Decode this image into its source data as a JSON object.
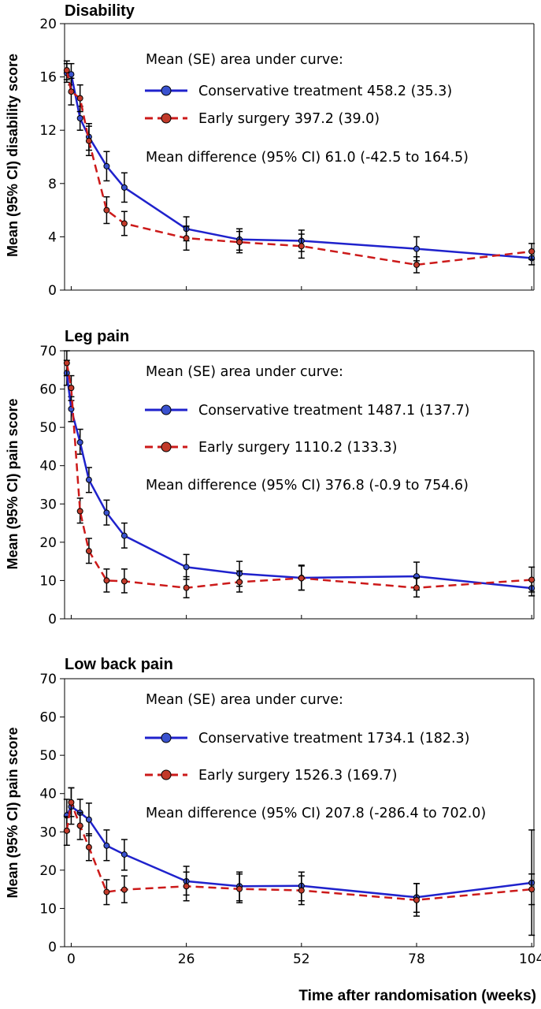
{
  "colors": {
    "conservative": "#1f22cc",
    "surgery": "#cc1a1a",
    "marker_fill_cons": "#3a52cf",
    "marker_fill_surg": "#c23a2a"
  },
  "chart_data": [
    {
      "type": "line",
      "title": "Disability",
      "ylabel": "Mean (95% CI) disability score",
      "xlabel": "",
      "xlim": [
        -1.5,
        104.5
      ],
      "ylim": [
        0,
        20
      ],
      "yticks": [
        0,
        4,
        8,
        12,
        16,
        20
      ],
      "xticks": [],
      "annotation_header": "Mean (SE) area under curve:",
      "annotation_footer": "Mean difference (95% CI) 61.0 (-42.5 to 164.5)",
      "series": [
        {
          "name": "Conservative treatment 458.2 (35.3)",
          "x": [
            -1,
            0,
            2,
            4,
            8,
            12,
            26,
            38,
            52,
            78,
            104
          ],
          "y": [
            16.3,
            16.2,
            12.9,
            11.5,
            9.3,
            7.7,
            4.6,
            3.8,
            3.7,
            3.1,
            2.4
          ],
          "lower": [
            15.6,
            15.4,
            12.0,
            10.5,
            8.2,
            6.6,
            3.7,
            3.0,
            2.9,
            2.2,
            1.9
          ],
          "upper": [
            17.0,
            17.0,
            13.8,
            12.5,
            10.4,
            8.8,
            5.5,
            4.6,
            4.5,
            4.0,
            2.9
          ]
        },
        {
          "name": "Early surgery 397.2 (39.0)",
          "x": [
            -1,
            0,
            2,
            4,
            8,
            12,
            26,
            38,
            52,
            78,
            104
          ],
          "y": [
            16.5,
            14.9,
            14.4,
            11.2,
            6.0,
            5.0,
            3.9,
            3.6,
            3.3,
            1.9,
            2.9
          ],
          "lower": [
            15.8,
            13.9,
            13.4,
            10.1,
            5.0,
            4.1,
            3.0,
            2.8,
            2.4,
            1.3,
            2.3
          ],
          "upper": [
            17.2,
            15.9,
            15.4,
            12.3,
            7.0,
            5.9,
            4.8,
            4.4,
            4.2,
            2.5,
            3.5
          ]
        }
      ]
    },
    {
      "type": "line",
      "title": "Leg pain",
      "ylabel": "Mean (95% CI) pain score",
      "xlabel": "",
      "xlim": [
        -1.5,
        104.5
      ],
      "ylim": [
        0,
        70
      ],
      "yticks": [
        0,
        10,
        20,
        30,
        40,
        50,
        60,
        70
      ],
      "xticks": [],
      "annotation_header": "Mean (SE) area under curve:",
      "annotation_footer": "Mean difference (95% CI) 376.8 (-0.9 to 754.6)",
      "series": [
        {
          "name": "Conservative treatment 1487.1 (137.7)",
          "x": [
            -1,
            0,
            2,
            4,
            8,
            12,
            26,
            38,
            52,
            78,
            104
          ],
          "y": [
            64.2,
            54.8,
            46.1,
            36.3,
            27.7,
            21.7,
            13.5,
            11.8,
            10.7,
            11.1,
            8.0
          ],
          "lower": [
            61.0,
            51.5,
            43.0,
            33.0,
            24.5,
            18.5,
            10.3,
            8.5,
            7.5,
            7.5,
            6.0
          ],
          "upper": [
            67.5,
            58.0,
            49.5,
            39.5,
            31.0,
            25.0,
            16.8,
            15.0,
            14.0,
            14.8,
            10.0
          ]
        },
        {
          "name": "Early surgery 1110.2 (133.3)",
          "x": [
            -1,
            0,
            2,
            4,
            8,
            12,
            26,
            38,
            52,
            78,
            104
          ],
          "y": [
            66.8,
            60.3,
            28.1,
            17.7,
            10.0,
            9.8,
            8.1,
            9.6,
            10.6,
            8.1,
            10.2
          ],
          "lower": [
            63.5,
            57.0,
            25.0,
            14.5,
            7.0,
            6.8,
            5.5,
            7.0,
            7.5,
            5.7,
            7.0
          ],
          "upper": [
            70.0,
            63.5,
            31.5,
            21.0,
            13.0,
            13.0,
            11.0,
            12.5,
            13.8,
            10.7,
            13.5
          ]
        }
      ]
    },
    {
      "type": "line",
      "title": "Low back pain",
      "ylabel": "Mean (95% CI) pain score",
      "xlabel": "Time after randomisation (weeks)",
      "xlim": [
        -1.5,
        104.5
      ],
      "ylim": [
        0,
        70
      ],
      "yticks": [
        0,
        10,
        20,
        30,
        40,
        50,
        60,
        70
      ],
      "xticks": [
        0,
        26,
        52,
        78,
        104
      ],
      "annotation_header": "Mean (SE) area under curve:",
      "annotation_footer": "Mean difference (95% CI) 207.8 (-286.4 to 702.0)",
      "series": [
        {
          "name": "Conservative treatment 1734.1 (182.3)",
          "x": [
            -1,
            0,
            2,
            4,
            8,
            12,
            26,
            38,
            52,
            78,
            104
          ],
          "y": [
            34.3,
            36.6,
            35.0,
            33.2,
            26.4,
            24.1,
            17.1,
            15.8,
            15.9,
            12.9,
            16.7
          ],
          "lower": [
            30.0,
            32.0,
            31.5,
            29.0,
            22.5,
            20.0,
            13.5,
            12.0,
            12.0,
            9.0,
            3.0
          ],
          "upper": [
            38.5,
            41.5,
            38.5,
            37.5,
            30.5,
            28.0,
            21.0,
            19.5,
            19.5,
            16.5,
            30.5
          ]
        },
        {
          "name": "Early surgery 1526.3 (169.7)",
          "x": [
            -1,
            0,
            2,
            4,
            8,
            12,
            26,
            38,
            52,
            78,
            104
          ],
          "y": [
            30.3,
            37.7,
            31.6,
            26.0,
            14.3,
            14.9,
            15.8,
            15.1,
            14.7,
            12.2,
            15.0
          ],
          "lower": [
            26.5,
            34.0,
            28.0,
            22.5,
            11.0,
            11.5,
            12.0,
            11.5,
            11.0,
            8.0,
            11.0
          ],
          "upper": [
            34.0,
            41.5,
            35.0,
            29.5,
            17.5,
            18.5,
            19.5,
            19.0,
            18.5,
            16.5,
            19.0
          ]
        }
      ]
    }
  ]
}
